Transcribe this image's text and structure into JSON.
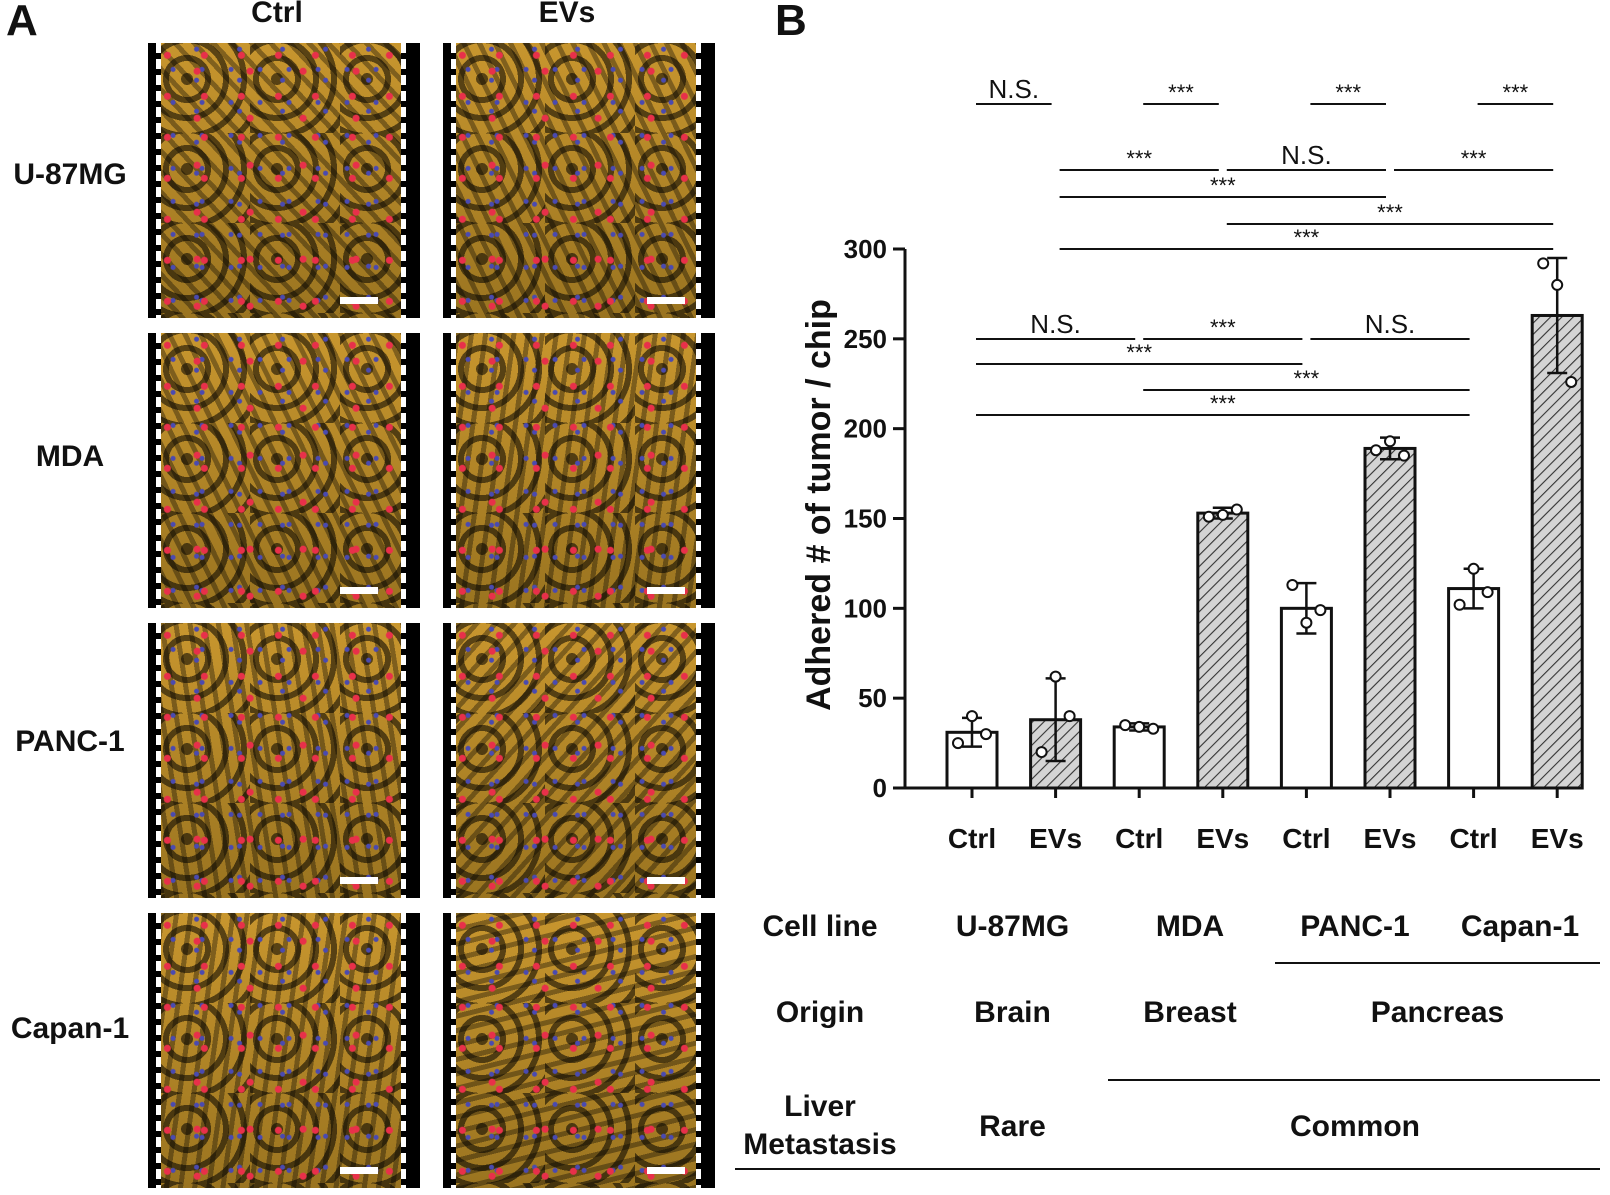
{
  "panel_a": {
    "letter": "A",
    "column_headers": [
      "Ctrl",
      "EVs"
    ],
    "row_headers": [
      "U-87MG",
      "MDA",
      "PANC-1",
      "Capan-1"
    ],
    "colors": {
      "cytoskeleton": "#c8962e",
      "tumor_cells": "#e8304a",
      "nuclei": "#4a4ab0",
      "background": "#000000"
    }
  },
  "panel_b": {
    "letter": "B",
    "significance": {
      "ns": "N.S.",
      "sig": "***"
    },
    "table": {
      "header_cell_line": "Cell line",
      "header_origin": "Origin",
      "header_liver_line1": "Liver",
      "header_liver_line2": "Metastasis",
      "cell_lines": [
        "U-87MG",
        "MDA",
        "PANC-1",
        "Capan-1"
      ],
      "origins": [
        "Brain",
        "Breast",
        "Pancreas"
      ],
      "liver_metastasis": [
        "Rare",
        "Common"
      ]
    }
  },
  "chart_data": {
    "type": "bar",
    "ylabel": "Adhered # of tumor / chip",
    "ylim": [
      0,
      300
    ],
    "yticks": [
      0,
      50,
      100,
      150,
      200,
      250,
      300
    ],
    "categories": [
      "Ctrl",
      "EVs",
      "Ctrl",
      "EVs",
      "Ctrl",
      "EVs",
      "Ctrl",
      "EVs"
    ],
    "groups": [
      "U-87MG",
      "MDA",
      "PANC-1",
      "Capan-1"
    ],
    "values": [
      31,
      38,
      34,
      153,
      100,
      189,
      111,
      263
    ],
    "errors": [
      8,
      23,
      2,
      3,
      14,
      6,
      11,
      32
    ],
    "fill": [
      "white",
      "hatched",
      "white",
      "hatched",
      "white",
      "hatched",
      "white",
      "hatched"
    ],
    "points": [
      [
        25,
        40,
        30
      ],
      [
        20,
        62,
        40
      ],
      [
        35,
        34,
        33
      ],
      [
        151,
        152,
        155
      ],
      [
        113,
        92,
        99
      ],
      [
        188,
        193,
        185
      ],
      [
        102,
        122,
        109
      ],
      [
        292,
        280,
        226
      ]
    ],
    "comparisons": [
      {
        "a": 0,
        "b": 1,
        "label": "N.S.",
        "level": 6
      },
      {
        "a": 2,
        "b": 3,
        "label": "***",
        "level": 6
      },
      {
        "a": 4,
        "b": 5,
        "label": "***",
        "level": 6
      },
      {
        "a": 6,
        "b": 7,
        "label": "***",
        "level": 6
      },
      {
        "a": 1,
        "b": 3,
        "label": "***",
        "level": 5
      },
      {
        "a": 3,
        "b": 5,
        "label": "N.S.",
        "level": 5
      },
      {
        "a": 5,
        "b": 7,
        "label": "***",
        "level": 5
      },
      {
        "a": 1,
        "b": 5,
        "label": "***",
        "level": 4
      },
      {
        "a": 3,
        "b": 7,
        "label": "***",
        "level": 3
      },
      {
        "a": 1,
        "b": 7,
        "label": "***",
        "level": 2
      },
      {
        "a": 0,
        "b": 2,
        "label": "N.S.",
        "level": 1
      },
      {
        "a": 2,
        "b": 4,
        "label": "***",
        "level": 1
      },
      {
        "a": 4,
        "b": 6,
        "label": "N.S.",
        "level": 1
      },
      {
        "a": 0,
        "b": 4,
        "label": "***",
        "level": 0
      },
      {
        "a": 2,
        "b": 6,
        "label": "***",
        "level": -1
      },
      {
        "a": 0,
        "b": 6,
        "label": "***",
        "level": -2
      }
    ]
  }
}
